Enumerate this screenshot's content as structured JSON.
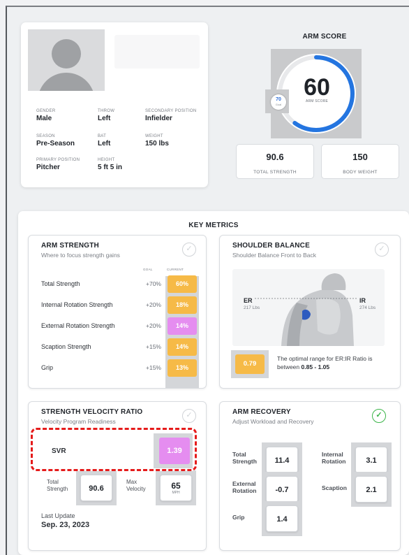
{
  "profile": {
    "fields": [
      {
        "label": "GENDER",
        "value": "Male"
      },
      {
        "label": "THROW",
        "value": "Left"
      },
      {
        "label": "SECONDARY POSITION",
        "value": "Infielder"
      },
      {
        "label": "SEASON",
        "value": "Pre-Season"
      },
      {
        "label": "BAT",
        "value": "Left"
      },
      {
        "label": "WEIGHT",
        "value": "150 lbs"
      },
      {
        "label": "PRIMARY POSITION",
        "value": "Pitcher"
      },
      {
        "label": "HEIGHT",
        "value": "5 ft 5 in"
      }
    ]
  },
  "arm_score": {
    "title": "ARM SCORE",
    "value": "60",
    "label": "ARM SCORE",
    "fraction": 0.6,
    "goal_value": "70",
    "goal_label": "Goal",
    "total_strength": {
      "value": "90.6",
      "label": "TOTAL STRENGTH"
    },
    "body_weight": {
      "value": "150",
      "label": "BODY WEIGHT"
    }
  },
  "key_metrics": {
    "title": "KEY METRICS",
    "arm_strength": {
      "title": "ARM STRENGTH",
      "subtitle": "Where to focus strength gains",
      "goal_header": "GOAL",
      "current_header": "CURRENT",
      "rows": [
        {
          "label": "Total Strength",
          "goal": "+70%",
          "current": "60%",
          "color": "#f6ba47"
        },
        {
          "label": "Internal Rotation Strength",
          "goal": "+20%",
          "current": "18%",
          "color": "#f6ba47"
        },
        {
          "label": "External Rotation Strength",
          "goal": "+20%",
          "current": "14%",
          "color": "#e58df0"
        },
        {
          "label": "Scaption Strength",
          "goal": "+15%",
          "current": "14%",
          "color": "#f6ba47"
        },
        {
          "label": "Grip",
          "goal": "+15%",
          "current": "13%",
          "color": "#f6ba47"
        }
      ]
    },
    "shoulder_balance": {
      "title": "SHOULDER BALANCE",
      "subtitle": "Shoulder Balance Front to Back",
      "er_label": "ER",
      "er_value": "217 Lbs",
      "ir_label": "IR",
      "ir_value": "274 Lbs",
      "ratio": "0.79",
      "note_text": "The optimal range for ER:IR Ratio is between ",
      "note_range": "0.85 - 1.05"
    },
    "svr": {
      "title": "STRENGTH VELOCITY RATIO",
      "subtitle": "Velocity Program Readiness",
      "label": "SVR",
      "value": "1.39",
      "total_strength_label_1": "Total",
      "total_strength_label_2": "Strength",
      "total_strength_value": "90.6",
      "max_velocity_label_1": "Max",
      "max_velocity_label_2": "Velocity",
      "max_velocity_value": "65",
      "max_velocity_unit": "MPH",
      "last_update_label": "Last Update",
      "last_update_value": "Sep. 23, 2023"
    },
    "arm_recovery": {
      "title": "ARM RECOVERY",
      "subtitle": "Adjust Workload and Recovery",
      "items": [
        {
          "label_1": "Total",
          "label_2": "Strength",
          "value": "11.4"
        },
        {
          "label_1": "Internal",
          "label_2": "Rotation",
          "value": "3.1"
        },
        {
          "label_1": "External",
          "label_2": "Rotation",
          "value": "-0.7"
        },
        {
          "label_1": "Scaption",
          "label_2": "",
          "value": "2.1"
        },
        {
          "label_1": "Grip",
          "label_2": "",
          "value": "1.4"
        }
      ]
    }
  }
}
